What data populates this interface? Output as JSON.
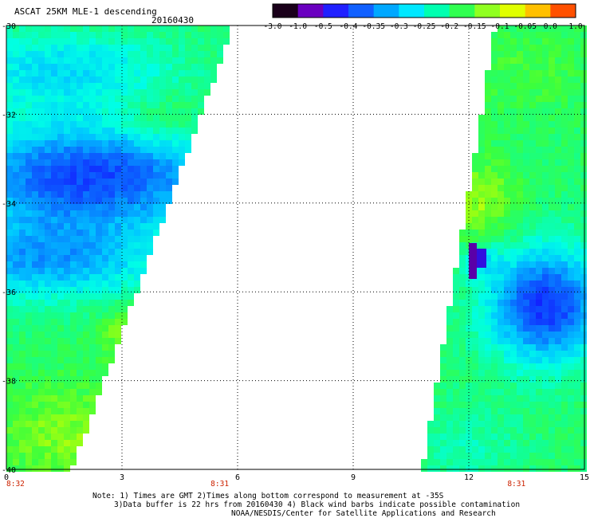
{
  "chart_data": {
    "type": "heatmap",
    "title": "ASCAT 25KM MLE-1 descending",
    "date": "20160430",
    "x_ticks": [
      "0",
      "3",
      "6",
      "9",
      "12",
      "15"
    ],
    "y_ticks": [
      "-30",
      "-32",
      "-34",
      "-36",
      "-38",
      "-40"
    ],
    "xlim": [
      0,
      15
    ],
    "ylim": [
      -40,
      -30
    ],
    "grid": true,
    "time_labels": [
      {
        "x": 0,
        "text": "8:32"
      },
      {
        "x": 5.3,
        "text": "8:31"
      },
      {
        "x": 13,
        "text": "8:31"
      }
    ],
    "colorbar": {
      "placement": "top-right",
      "labels": [
        "-3.0",
        "-1.0",
        "-0.5",
        "-0.4",
        "-0.35",
        "-0.3",
        "-0.25",
        "-0.2",
        "-0.15",
        "-0.1",
        "-0.05",
        "0.0",
        "1.0"
      ],
      "colors": [
        "#1a001a",
        "#6a00c0",
        "#2020ff",
        "#1060ff",
        "#00a8ff",
        "#00e8ff",
        "#00ffb0",
        "#30ff50",
        "#90ff20",
        "#e0ff00",
        "#ffc000",
        "#ff5000"
      ]
    },
    "swaths": [
      {
        "name": "west",
        "x_range": [
          0,
          6.0
        ],
        "y_range": [
          -40,
          -30
        ]
      },
      {
        "name": "east",
        "x_range": [
          10.8,
          15
        ],
        "y_range": [
          -40,
          -30
        ]
      }
    ]
  },
  "notes": {
    "line1": "Note: 1) Times are GMT 2)Times along bottom correspond to measurement at -35S",
    "line2": "3)Data buffer is 22 hrs from 20160430 4) Black wind barbs indicate possible contamination",
    "line3": "NOAA/NESDIS/Center for Satellite Applications and Research"
  },
  "colors": {
    "time_label": "#cc2200",
    "grid": "#000000",
    "background": "#ffffff"
  }
}
